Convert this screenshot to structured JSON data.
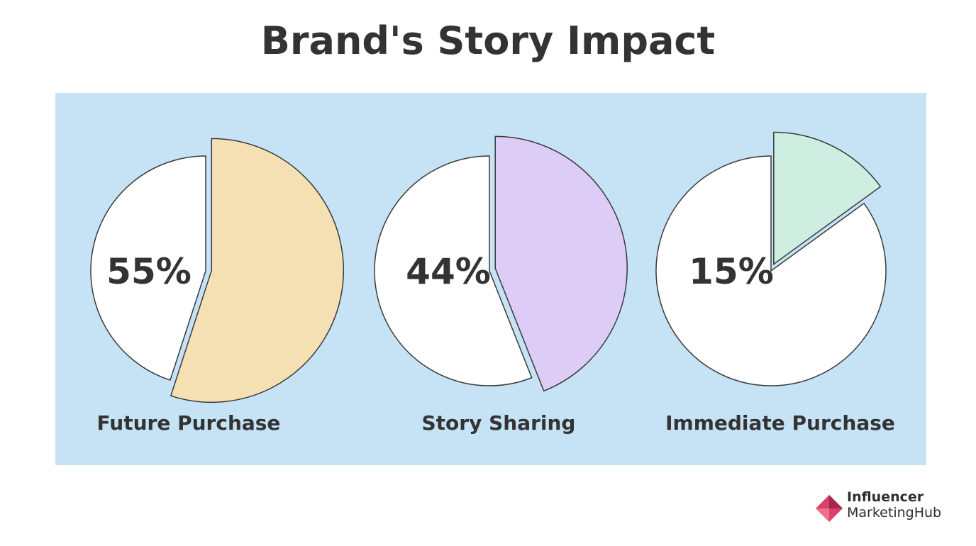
{
  "title": "Brand's Story Impact",
  "chart_data": [
    {
      "type": "pie",
      "title": "",
      "slices": [
        {
          "label": "Future Purchase",
          "value": 55
        },
        {
          "label": "",
          "value": 45
        }
      ],
      "center_label": "55%",
      "category_label": "Future Purchase",
      "highlight_color": "#f5e0b4",
      "rest_color": "#ffffff"
    },
    {
      "type": "pie",
      "title": "",
      "slices": [
        {
          "label": "Story Sharing",
          "value": 44
        },
        {
          "label": "",
          "value": 56
        }
      ],
      "center_label": "44%",
      "category_label": "Story Sharing",
      "highlight_color": "#ddccf6",
      "rest_color": "#ffffff"
    },
    {
      "type": "pie",
      "title": "",
      "slices": [
        {
          "label": "Immediate Purchase",
          "value": 15
        },
        {
          "label": "",
          "value": 85
        }
      ],
      "center_label": "15%",
      "category_label": "Immediate Purchase",
      "highlight_color": "#cdeee0",
      "rest_color": "#ffffff"
    }
  ],
  "panel_color": "#c5e3f5",
  "logo": {
    "line1": "Influencer",
    "line2": "MarketingHub",
    "mark_color": "#d9416a",
    "mark_icon": "diamond-logo-icon"
  }
}
